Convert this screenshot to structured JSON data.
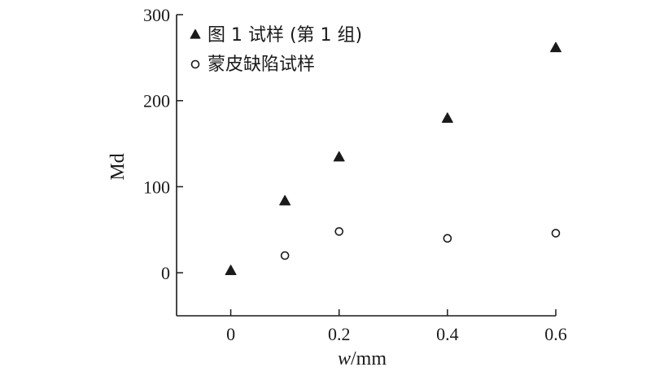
{
  "chart_data": {
    "type": "scatter",
    "xlabel_italic": "w",
    "xlabel_unit": "/mm",
    "ylabel": "Md",
    "xlim": [
      -0.1,
      0.6
    ],
    "ylim": [
      -50,
      300
    ],
    "x_ticks": [
      0,
      0.2,
      0.4,
      0.6
    ],
    "x_tick_labels": [
      "0",
      "0.2",
      "0.4",
      "0.6"
    ],
    "y_ticks": [
      0,
      100,
      200,
      300
    ],
    "y_tick_labels": [
      "0",
      "100",
      "200",
      "300"
    ],
    "grid": false,
    "legend_position": "top-left",
    "series": [
      {
        "name": "图 1 试样 (第 1 组)",
        "marker": "triangle-filled",
        "color": "#1a1a1a",
        "points": [
          {
            "x": 0,
            "y": 2
          },
          {
            "x": 0.1,
            "y": 83
          },
          {
            "x": 0.2,
            "y": 134
          },
          {
            "x": 0.4,
            "y": 179
          },
          {
            "x": 0.6,
            "y": 261
          }
        ]
      },
      {
        "name": "蒙皮缺陷试样",
        "marker": "circle-open",
        "color": "#1a1a1a",
        "points": [
          {
            "x": 0.1,
            "y": 20
          },
          {
            "x": 0.2,
            "y": 48
          },
          {
            "x": 0.4,
            "y": 40
          },
          {
            "x": 0.6,
            "y": 46
          }
        ]
      }
    ]
  }
}
